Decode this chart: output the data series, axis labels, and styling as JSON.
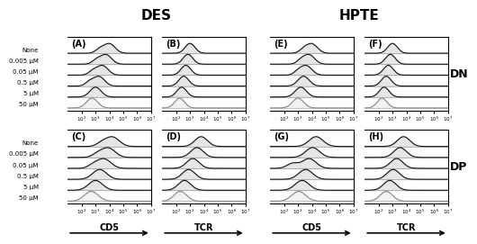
{
  "title_DES": "DES",
  "title_HPTE": "HPTE",
  "panel_labels_top": [
    "(A)",
    "(B)",
    "(E)",
    "(F)"
  ],
  "panel_labels_bottom": [
    "(C)",
    "(D)",
    "(G)",
    "(H)"
  ],
  "row_labels": [
    "None",
    "0.005 μM",
    "0.05 μM",
    "0.5 μM",
    "5 μM",
    "50 μM"
  ],
  "right_labels": [
    "DN",
    "DP"
  ],
  "bottom_labels_left": [
    "CD5",
    "TCR",
    "CD5",
    "TCR"
  ],
  "xlog_min": 1,
  "xlog_max": 7,
  "background": "#ffffff",
  "line_color_dark": "#111111",
  "line_color_light": "#888888",
  "title_fontsize": 11,
  "label_fontsize": 7,
  "panel_label_fontsize": 7
}
